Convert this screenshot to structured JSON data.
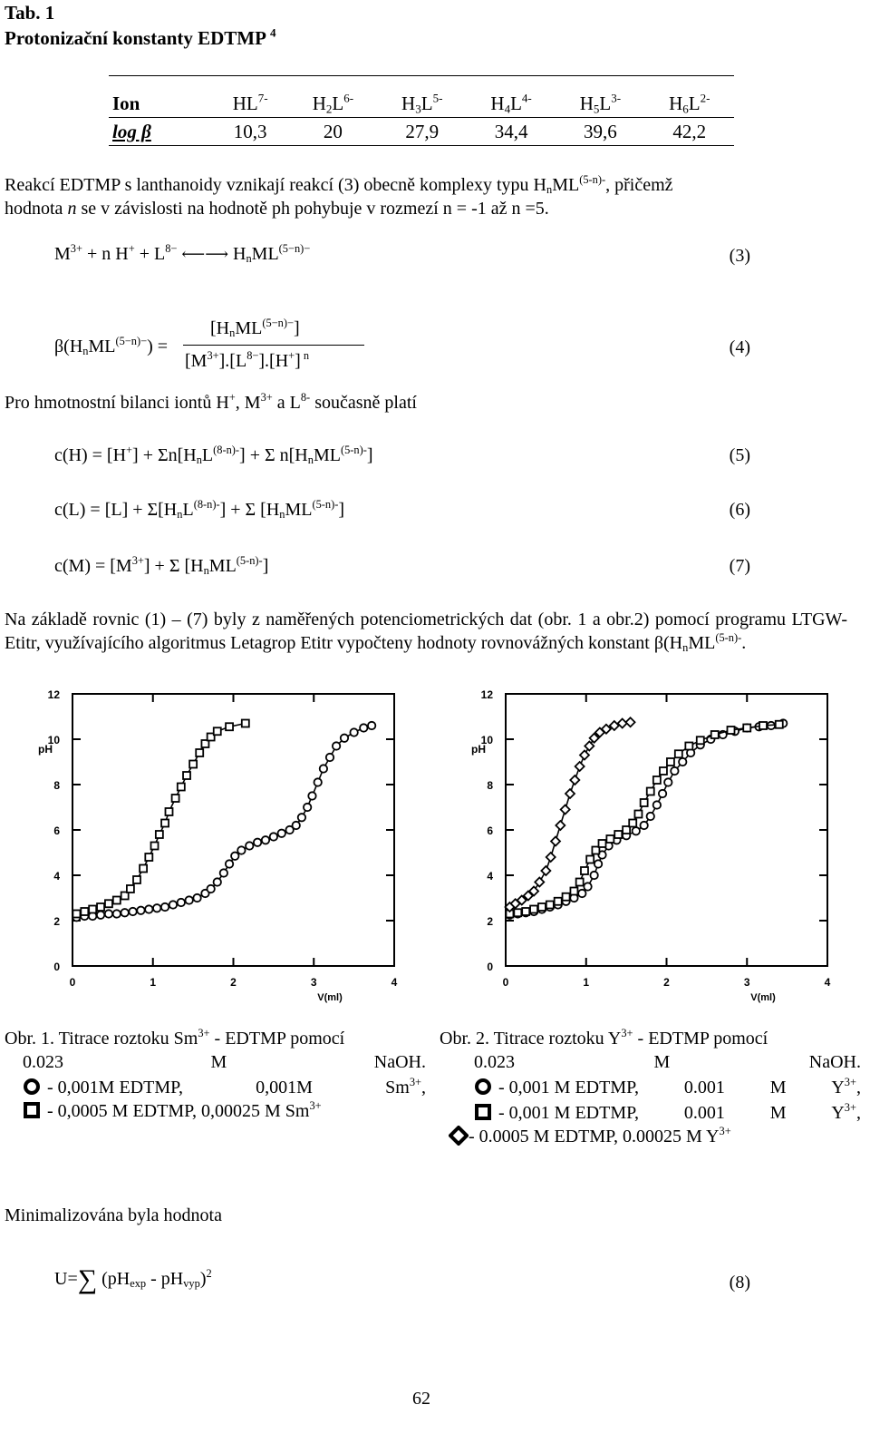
{
  "header": {
    "tab": "Tab. 1",
    "title": "Protonizační konstanty EDTMP",
    "title_ref": "4"
  },
  "table": {
    "row1_label": "Ion",
    "row2_label": "log β",
    "ions": [
      {
        "base": "HL",
        "sub": "",
        "sup": "7-"
      },
      {
        "base": "H",
        "sub": "2",
        "rest": "L",
        "sup": "6-"
      },
      {
        "base": "H",
        "sub": "3",
        "rest": "L",
        "sup": "5-"
      },
      {
        "base": "H",
        "sub": "4",
        "rest": "L",
        "sup": "4-"
      },
      {
        "base": "H",
        "sub": "5",
        "rest": "L",
        "sup": "3-"
      },
      {
        "base": "H",
        "sub": "6",
        "rest": "L",
        "sup": "2-"
      }
    ],
    "values": [
      "10,3",
      "20",
      "27,9",
      "34,4",
      "39,6",
      "42,2"
    ]
  },
  "intro": {
    "line1_a": "Reakcí EDTMP s lanthanoidy vznikají reakcí (3) obecně komplexy typu H",
    "line1_sub": "n",
    "line1_b": "ML",
    "line1_sup": "(5-n)-",
    "line1_c": ", přičemž",
    "line2_a": "hodnota ",
    "line2_n": "n",
    "line2_b": " se v závislosti na hodnotě ph pohybuje v rozmezí n = -1 až n =5."
  },
  "equations": {
    "eq3_number": "(3)",
    "eq4_number": "(4)",
    "eq5_number": "(5)",
    "eq6_number": "(6)",
    "eq7_number": "(7)",
    "eq8_number": "(8)"
  },
  "balance_text": {
    "a": "Pro hmotnostní bilanci iontů H",
    "b": ", M",
    "c": " a L",
    "d": " současně platí"
  },
  "paragraph": "Na základě rovnic (1) – (7) byly z naměřených potenciometrických dat (obr. 1 a obr.2) pomocí programu LTGW-Etitr, využívajícího algoritmus Letagrop Etitr vypočteny hodnoty rovnovážných konstant β(H",
  "chart_data": [
    {
      "type": "scatter",
      "ylabel": "pH",
      "xlabel": "V(ml)",
      "xlim": [
        0,
        4
      ],
      "ylim": [
        0,
        12
      ],
      "xticks": [
        "0",
        "1",
        "2",
        "3",
        "4"
      ],
      "yticks": [
        "0",
        "2",
        "4",
        "6",
        "8",
        "10",
        "12"
      ],
      "series": [
        {
          "marker": "circle",
          "points": [
            [
              0.05,
              2.15
            ],
            [
              0.15,
              2.2
            ],
            [
              0.25,
              2.2
            ],
            [
              0.35,
              2.25
            ],
            [
              0.45,
              2.3
            ],
            [
              0.55,
              2.3
            ],
            [
              0.65,
              2.35
            ],
            [
              0.75,
              2.4
            ],
            [
              0.85,
              2.45
            ],
            [
              0.95,
              2.5
            ],
            [
              1.05,
              2.55
            ],
            [
              1.15,
              2.6
            ],
            [
              1.25,
              2.7
            ],
            [
              1.35,
              2.8
            ],
            [
              1.45,
              2.9
            ],
            [
              1.55,
              3.0
            ],
            [
              1.65,
              3.2
            ],
            [
              1.72,
              3.4
            ],
            [
              1.8,
              3.7
            ],
            [
              1.88,
              4.1
            ],
            [
              1.95,
              4.5
            ],
            [
              2.02,
              4.85
            ],
            [
              2.1,
              5.1
            ],
            [
              2.2,
              5.3
            ],
            [
              2.3,
              5.45
            ],
            [
              2.4,
              5.55
            ],
            [
              2.5,
              5.7
            ],
            [
              2.6,
              5.85
            ],
            [
              2.7,
              6.0
            ],
            [
              2.78,
              6.2
            ],
            [
              2.85,
              6.55
            ],
            [
              2.92,
              7.0
            ],
            [
              2.98,
              7.5
            ],
            [
              3.05,
              8.1
            ],
            [
              3.12,
              8.7
            ],
            [
              3.2,
              9.2
            ],
            [
              3.28,
              9.7
            ],
            [
              3.38,
              10.05
            ],
            [
              3.5,
              10.3
            ],
            [
              3.62,
              10.5
            ],
            [
              3.72,
              10.6
            ]
          ]
        },
        {
          "marker": "square",
          "points": [
            [
              0.05,
              2.3
            ],
            [
              0.15,
              2.4
            ],
            [
              0.25,
              2.5
            ],
            [
              0.35,
              2.6
            ],
            [
              0.45,
              2.75
            ],
            [
              0.55,
              2.9
            ],
            [
              0.65,
              3.1
            ],
            [
              0.72,
              3.4
            ],
            [
              0.8,
              3.8
            ],
            [
              0.88,
              4.3
            ],
            [
              0.95,
              4.8
            ],
            [
              1.02,
              5.3
            ],
            [
              1.08,
              5.8
            ],
            [
              1.15,
              6.3
            ],
            [
              1.2,
              6.8
            ],
            [
              1.28,
              7.4
            ],
            [
              1.35,
              7.9
            ],
            [
              1.42,
              8.4
            ],
            [
              1.5,
              8.9
            ],
            [
              1.58,
              9.4
            ],
            [
              1.65,
              9.8
            ],
            [
              1.72,
              10.1
            ],
            [
              1.8,
              10.35
            ],
            [
              1.95,
              10.55
            ],
            [
              2.15,
              10.7
            ]
          ]
        }
      ]
    },
    {
      "type": "scatter",
      "ylabel": "pH",
      "xlabel": "V(ml)",
      "xlim": [
        0,
        4
      ],
      "ylim": [
        0,
        12
      ],
      "xticks": [
        "0",
        "1",
        "2",
        "3",
        "4"
      ],
      "yticks": [
        "0",
        "2",
        "4",
        "6",
        "8",
        "10",
        "12"
      ],
      "series": [
        {
          "marker": "circle",
          "points": [
            [
              0.05,
              2.25
            ],
            [
              0.15,
              2.3
            ],
            [
              0.25,
              2.35
            ],
            [
              0.35,
              2.4
            ],
            [
              0.45,
              2.5
            ],
            [
              0.55,
              2.6
            ],
            [
              0.65,
              2.7
            ],
            [
              0.75,
              2.85
            ],
            [
              0.85,
              3.0
            ],
            [
              0.95,
              3.2
            ],
            [
              1.02,
              3.5
            ],
            [
              1.1,
              4.0
            ],
            [
              1.15,
              4.5
            ],
            [
              1.2,
              4.9
            ],
            [
              1.28,
              5.3
            ],
            [
              1.38,
              5.55
            ],
            [
              1.5,
              5.75
            ],
            [
              1.62,
              5.95
            ],
            [
              1.72,
              6.2
            ],
            [
              1.8,
              6.6
            ],
            [
              1.88,
              7.1
            ],
            [
              1.95,
              7.6
            ],
            [
              2.02,
              8.1
            ],
            [
              2.1,
              8.6
            ],
            [
              2.2,
              9.0
            ],
            [
              2.3,
              9.4
            ],
            [
              2.42,
              9.75
            ],
            [
              2.55,
              10.0
            ],
            [
              2.7,
              10.2
            ],
            [
              2.85,
              10.35
            ],
            [
              3.0,
              10.5
            ],
            [
              3.15,
              10.55
            ],
            [
              3.3,
              10.6
            ],
            [
              3.45,
              10.7
            ]
          ]
        },
        {
          "marker": "square",
          "points": [
            [
              0.05,
              2.3
            ],
            [
              0.15,
              2.35
            ],
            [
              0.25,
              2.4
            ],
            [
              0.35,
              2.5
            ],
            [
              0.45,
              2.6
            ],
            [
              0.55,
              2.7
            ],
            [
              0.65,
              2.85
            ],
            [
              0.75,
              3.05
            ],
            [
              0.85,
              3.3
            ],
            [
              0.92,
              3.7
            ],
            [
              0.98,
              4.2
            ],
            [
              1.05,
              4.7
            ],
            [
              1.12,
              5.1
            ],
            [
              1.2,
              5.4
            ],
            [
              1.3,
              5.6
            ],
            [
              1.4,
              5.8
            ],
            [
              1.5,
              6.0
            ],
            [
              1.58,
              6.3
            ],
            [
              1.65,
              6.7
            ],
            [
              1.72,
              7.2
            ],
            [
              1.8,
              7.7
            ],
            [
              1.88,
              8.2
            ],
            [
              1.96,
              8.6
            ],
            [
              2.05,
              9.0
            ],
            [
              2.15,
              9.35
            ],
            [
              2.28,
              9.7
            ],
            [
              2.42,
              9.95
            ],
            [
              2.6,
              10.2
            ],
            [
              2.8,
              10.4
            ],
            [
              3.0,
              10.5
            ],
            [
              3.2,
              10.6
            ],
            [
              3.4,
              10.65
            ]
          ]
        },
        {
          "marker": "diamond",
          "points": [
            [
              0.05,
              2.6
            ],
            [
              0.12,
              2.75
            ],
            [
              0.2,
              2.9
            ],
            [
              0.28,
              3.1
            ],
            [
              0.35,
              3.3
            ],
            [
              0.42,
              3.7
            ],
            [
              0.5,
              4.2
            ],
            [
              0.56,
              4.8
            ],
            [
              0.62,
              5.5
            ],
            [
              0.68,
              6.2
            ],
            [
              0.74,
              6.9
            ],
            [
              0.8,
              7.6
            ],
            [
              0.86,
              8.2
            ],
            [
              0.92,
              8.8
            ],
            [
              0.98,
              9.3
            ],
            [
              1.04,
              9.7
            ],
            [
              1.1,
              10.05
            ],
            [
              1.17,
              10.3
            ],
            [
              1.25,
              10.45
            ],
            [
              1.35,
              10.6
            ],
            [
              1.45,
              10.7
            ],
            [
              1.55,
              10.75
            ]
          ]
        }
      ]
    }
  ],
  "captions": {
    "fig1_line1_a": "Obr. 1. Titrace roztoku Sm",
    "fig1_line1_sup": "3+",
    "fig1_line1_b": " - EDTMP pomocí",
    "fig1_line2": [
      "0.023",
      "M",
      "NaOH."
    ],
    "fig1_legend1_a": "- 0,001M EDTMP,",
    "fig1_legend1_b": "0,001M",
    "fig1_legend1_c": "Sm",
    "fig1_legend1_sup": "3+",
    "fig1_legend2_a": "- 0,0005 M EDTMP, 0,00025 M Sm",
    "fig1_legend2_sup": "3+",
    "fig2_line1_a": "Obr. 2. Titrace roztoku Y",
    "fig2_line1_sup": "3+",
    "fig2_line1_b": " - EDTMP pomocí",
    "fig2_line2": [
      "0.023",
      "M",
      "NaOH."
    ],
    "fig2_legend1_a": "- 0,001 M EDTMP,",
    "fig2_legend1_b": "0.001",
    "fig2_legend1_c": "M",
    "fig2_legend1_d": "Y",
    "fig2_legend1_sup": "3+",
    "fig2_legend2_a": "- 0,001 M EDTMP,",
    "fig2_legend2_b": "0.001",
    "fig2_legend2_c": "M",
    "fig2_legend2_d": "Y",
    "fig2_legend2_sup": "3+",
    "fig2_legend3_a": "- 0.0005 M EDTMP, 0.00025 M Y",
    "fig2_legend3_sup": "3+"
  },
  "minimized_text": "Minimalizována byla hodnota",
  "page_number": "62"
}
